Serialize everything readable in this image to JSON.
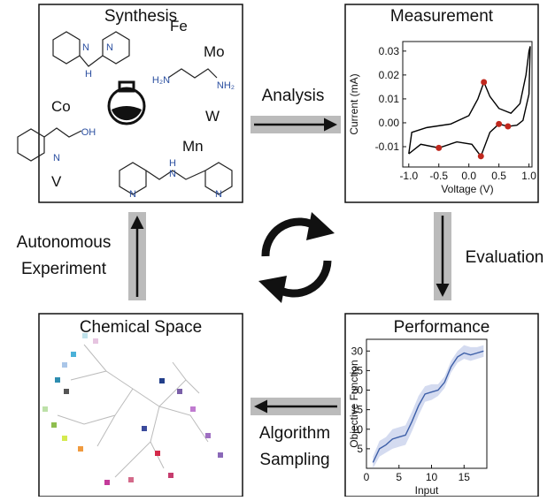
{
  "panels": {
    "synthesis": {
      "title": "Synthesis",
      "elements": [
        "Fe",
        "Mo",
        "Co",
        "W",
        "Mn",
        "V"
      ],
      "atom_labels": [
        "N",
        "H",
        "N",
        "H₂N",
        "NH₂",
        "N",
        "OH",
        "N",
        "H",
        "N",
        "N"
      ]
    },
    "measurement": {
      "title": "Measurement",
      "x_label": "Voltage (V)",
      "y_label": "Current (mA)",
      "xlim": [
        -1.1,
        1.05
      ],
      "ylim": [
        -0.0185,
        0.034
      ],
      "xticks": [
        {
          "value": -1,
          "label": "-1.0"
        },
        {
          "value": -0.5,
          "label": "-0.5"
        },
        {
          "value": 0,
          "label": "0.0"
        },
        {
          "value": 0.5,
          "label": "0.5"
        },
        {
          "value": 1,
          "label": "1.0"
        }
      ],
      "yticks": [
        -0.01,
        {
          "value": 0,
          "label": "0.00"
        },
        0.01,
        0.02,
        0.03
      ],
      "curve": {
        "color": "#000000",
        "x": [
          -1.0,
          -0.95,
          -0.7,
          -0.3,
          0.0,
          0.15,
          0.25,
          0.35,
          0.5,
          0.7,
          0.85,
          0.95,
          1.0,
          1.02,
          1.0,
          0.9,
          0.8,
          0.65,
          0.5,
          0.35,
          0.2,
          0.05,
          -0.2,
          -0.5,
          -0.8,
          -1.0
        ],
        "y": [
          -0.013,
          -0.004,
          -0.002,
          -0.0005,
          0.003,
          0.01,
          0.017,
          0.011,
          0.006,
          0.004,
          0.008,
          0.02,
          0.03,
          0.032,
          0.012,
          0.001,
          -0.001,
          -0.0015,
          -0.0005,
          -0.004,
          -0.014,
          -0.009,
          -0.008,
          -0.0105,
          -0.009,
          -0.013
        ]
      },
      "points": {
        "color": "#c0281e",
        "x": [
          0.25,
          0.5,
          0.65,
          -0.5,
          0.2
        ],
        "y": [
          0.017,
          -0.0005,
          -0.0015,
          -0.0105,
          -0.014
        ]
      }
    },
    "performance": {
      "title": "Performance",
      "x_label": "Input",
      "y_label": "Objective Function",
      "xlim": [
        0,
        18.5
      ],
      "ylim": [
        0,
        33
      ],
      "xticks": [
        0,
        5,
        10,
        15
      ],
      "yticks": [
        5,
        10,
        15,
        20,
        25,
        30
      ],
      "line": {
        "color": "#3d5fa8",
        "band_color": "#c9d2ec",
        "x": [
          1,
          2,
          3,
          4,
          5,
          6,
          7,
          8,
          9,
          10,
          11,
          12,
          13,
          14,
          15,
          16,
          17,
          18
        ],
        "mean": [
          1.5,
          5,
          6,
          7.5,
          8,
          8.5,
          12,
          16,
          19,
          19.5,
          20,
          22,
          26,
          28.5,
          29.5,
          29,
          29.5,
          30
        ],
        "lower": [
          0,
          3,
          4,
          5,
          5.5,
          6,
          9.5,
          13.5,
          17,
          17.5,
          18.5,
          20.5,
          24.5,
          27,
          28,
          27.5,
          28,
          28.5
        ],
        "upper": [
          3,
          7,
          8,
          10,
          10.5,
          11,
          14.5,
          18.5,
          21,
          21.5,
          21.5,
          23.5,
          27.5,
          30,
          31.5,
          31,
          31,
          31.5
        ]
      }
    },
    "chemical_space": {
      "title": "Chemical Space"
    }
  },
  "arrows": {
    "analysis": "Analysis",
    "evaluation": "Evaluation",
    "sampling": [
      "Algorithm",
      "Sampling"
    ],
    "autonomous": [
      "Autonomous",
      "Experiment"
    ]
  }
}
